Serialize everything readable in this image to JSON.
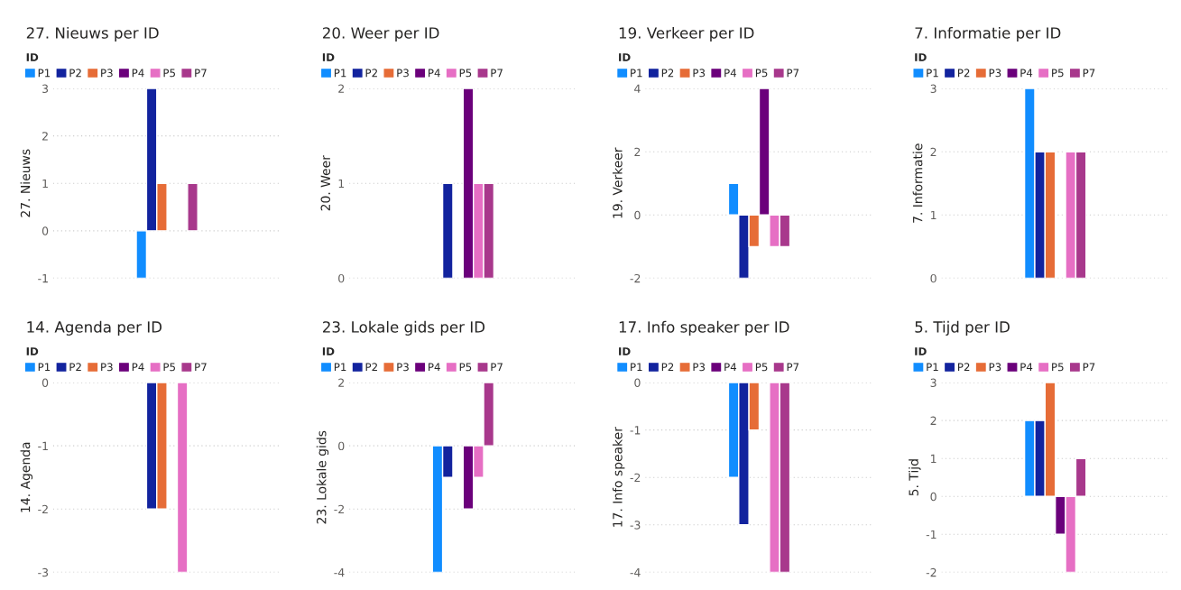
{
  "chart_data": [
    {
      "type": "bar",
      "title": "27. Nieuws per ID",
      "ylabel": "27. Nieuws",
      "legend_title": "ID",
      "legend": "top left",
      "grid": "y",
      "categories": [
        null
      ],
      "ylim": [
        -1,
        3
      ],
      "yticks": [
        -1,
        0,
        1,
        2,
        3
      ],
      "series": [
        {
          "name": "P1",
          "color": "#118dff",
          "values": [
            -1
          ]
        },
        {
          "name": "P2",
          "color": "#12239e",
          "values": [
            3
          ]
        },
        {
          "name": "P3",
          "color": "#e66c37",
          "values": [
            1
          ]
        },
        {
          "name": "P4",
          "color": "#6b007b",
          "values": [
            null
          ]
        },
        {
          "name": "P5",
          "color": "#e66fc4",
          "values": [
            null
          ]
        },
        {
          "name": "P7",
          "color": "#a8388c",
          "values": [
            1
          ]
        }
      ]
    },
    {
      "type": "bar",
      "title": "20. Weer per ID",
      "ylabel": "20. Weer",
      "legend_title": "ID",
      "legend": "top left",
      "grid": "y",
      "categories": [
        null
      ],
      "ylim": [
        0,
        2
      ],
      "yticks": [
        0,
        1,
        2
      ],
      "series": [
        {
          "name": "P1",
          "color": "#118dff",
          "values": [
            null
          ]
        },
        {
          "name": "P2",
          "color": "#12239e",
          "values": [
            1
          ]
        },
        {
          "name": "P3",
          "color": "#e66c37",
          "values": [
            null
          ]
        },
        {
          "name": "P4",
          "color": "#6b007b",
          "values": [
            2
          ]
        },
        {
          "name": "P5",
          "color": "#e66fc4",
          "values": [
            1
          ]
        },
        {
          "name": "P7",
          "color": "#a8388c",
          "values": [
            1
          ]
        }
      ]
    },
    {
      "type": "bar",
      "title": "19. Verkeer per ID",
      "ylabel": "19. Verkeer",
      "legend_title": "ID",
      "legend": "top left",
      "grid": "y",
      "categories": [
        null
      ],
      "ylim": [
        -2,
        4
      ],
      "yticks": [
        -2,
        0,
        2,
        4
      ],
      "series": [
        {
          "name": "P1",
          "color": "#118dff",
          "values": [
            1
          ]
        },
        {
          "name": "P2",
          "color": "#12239e",
          "values": [
            -2
          ]
        },
        {
          "name": "P3",
          "color": "#e66c37",
          "values": [
            -1
          ]
        },
        {
          "name": "P4",
          "color": "#6b007b",
          "values": [
            4
          ]
        },
        {
          "name": "P5",
          "color": "#e66fc4",
          "values": [
            -1
          ]
        },
        {
          "name": "P7",
          "color": "#a8388c",
          "values": [
            -1
          ]
        }
      ]
    },
    {
      "type": "bar",
      "title": "7. Informatie per ID",
      "ylabel": "7. Informatie",
      "legend_title": "ID",
      "legend": "top left",
      "grid": "y",
      "categories": [
        null
      ],
      "ylim": [
        0,
        3
      ],
      "yticks": [
        0,
        1,
        2,
        3
      ],
      "series": [
        {
          "name": "P1",
          "color": "#118dff",
          "values": [
            3
          ]
        },
        {
          "name": "P2",
          "color": "#12239e",
          "values": [
            2
          ]
        },
        {
          "name": "P3",
          "color": "#e66c37",
          "values": [
            2
          ]
        },
        {
          "name": "P4",
          "color": "#6b007b",
          "values": [
            null
          ]
        },
        {
          "name": "P5",
          "color": "#e66fc4",
          "values": [
            2
          ]
        },
        {
          "name": "P7",
          "color": "#a8388c",
          "values": [
            2
          ]
        }
      ]
    },
    {
      "type": "bar",
      "title": "14. Agenda per ID",
      "ylabel": "14. Agenda",
      "legend_title": "ID",
      "legend": "top left",
      "grid": "y",
      "categories": [
        null
      ],
      "ylim": [
        -3,
        0
      ],
      "yticks": [
        -3,
        -2,
        -1,
        0
      ],
      "series": [
        {
          "name": "P1",
          "color": "#118dff",
          "values": [
            null
          ]
        },
        {
          "name": "P2",
          "color": "#12239e",
          "values": [
            -2
          ]
        },
        {
          "name": "P3",
          "color": "#e66c37",
          "values": [
            -2
          ]
        },
        {
          "name": "P4",
          "color": "#6b007b",
          "values": [
            null
          ]
        },
        {
          "name": "P5",
          "color": "#e66fc4",
          "values": [
            -3
          ]
        },
        {
          "name": "P7",
          "color": "#a8388c",
          "values": [
            null
          ]
        }
      ]
    },
    {
      "type": "bar",
      "title": "23. Lokale gids per ID",
      "ylabel": "23. Lokale gids",
      "legend_title": "ID",
      "legend": "top left",
      "grid": "y",
      "categories": [
        null
      ],
      "ylim": [
        -4,
        2
      ],
      "yticks": [
        -4,
        -2,
        0,
        2
      ],
      "series": [
        {
          "name": "P1",
          "color": "#118dff",
          "values": [
            -4
          ]
        },
        {
          "name": "P2",
          "color": "#12239e",
          "values": [
            -1
          ]
        },
        {
          "name": "P3",
          "color": "#e66c37",
          "values": [
            null
          ]
        },
        {
          "name": "P4",
          "color": "#6b007b",
          "values": [
            -2
          ]
        },
        {
          "name": "P5",
          "color": "#e66fc4",
          "values": [
            -1
          ]
        },
        {
          "name": "P7",
          "color": "#a8388c",
          "values": [
            2
          ]
        }
      ]
    },
    {
      "type": "bar",
      "title": "17. Info speaker per ID",
      "ylabel": "17. Info speaker",
      "legend_title": "ID",
      "legend": "top left",
      "grid": "y",
      "categories": [
        null
      ],
      "ylim": [
        -4,
        0
      ],
      "yticks": [
        -4,
        -3,
        -2,
        -1,
        0
      ],
      "series": [
        {
          "name": "P1",
          "color": "#118dff",
          "values": [
            -2
          ]
        },
        {
          "name": "P2",
          "color": "#12239e",
          "values": [
            -3
          ]
        },
        {
          "name": "P3",
          "color": "#e66c37",
          "values": [
            -1
          ]
        },
        {
          "name": "P4",
          "color": "#6b007b",
          "values": [
            null
          ]
        },
        {
          "name": "P5",
          "color": "#e66fc4",
          "values": [
            -4
          ]
        },
        {
          "name": "P7",
          "color": "#a8388c",
          "values": [
            -4
          ]
        }
      ]
    },
    {
      "type": "bar",
      "title": "5. Tijd per ID",
      "ylabel": "5. Tijd",
      "legend_title": "ID",
      "legend": "top left",
      "grid": "y",
      "categories": [
        null
      ],
      "ylim": [
        -2,
        3
      ],
      "yticks": [
        -2,
        -1,
        0,
        1,
        2,
        3
      ],
      "series": [
        {
          "name": "P1",
          "color": "#118dff",
          "values": [
            2
          ]
        },
        {
          "name": "P2",
          "color": "#12239e",
          "values": [
            2
          ]
        },
        {
          "name": "P3",
          "color": "#e66c37",
          "values": [
            3
          ]
        },
        {
          "name": "P4",
          "color": "#6b007b",
          "values": [
            -1
          ]
        },
        {
          "name": "P5",
          "color": "#e66fc4",
          "values": [
            -2
          ]
        },
        {
          "name": "P7",
          "color": "#a8388c",
          "values": [
            1
          ]
        }
      ]
    }
  ]
}
